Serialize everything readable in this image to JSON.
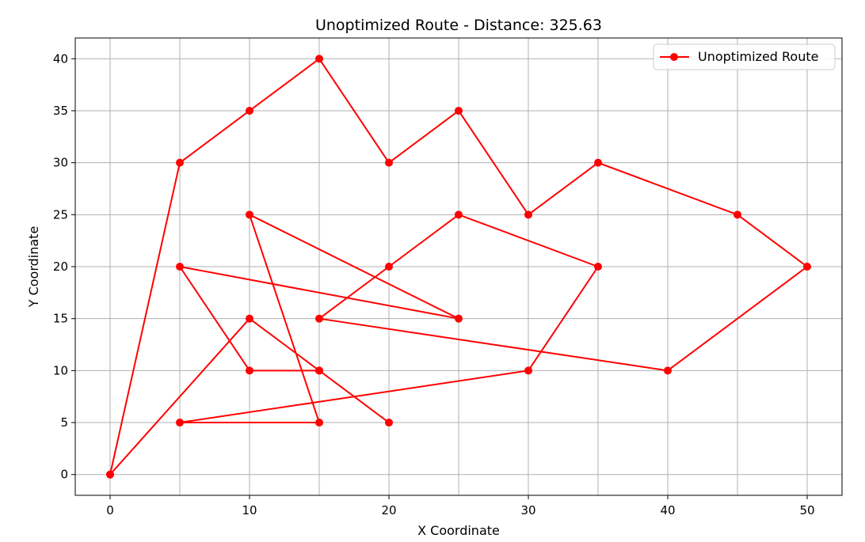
{
  "chart_data": {
    "type": "line",
    "title": "Unoptimized Route - Distance: 325.63",
    "xlabel": "X Coordinate",
    "ylabel": "Y Coordinate",
    "xlim": [
      -2.5,
      52.5
    ],
    "ylim": [
      -2,
      42
    ],
    "xticks": [
      0,
      10,
      20,
      30,
      40,
      50
    ],
    "yticks": [
      0,
      5,
      10,
      15,
      20,
      25,
      30,
      35,
      40
    ],
    "xtick_labels": [
      "0",
      "10",
      "20",
      "30",
      "40",
      "50"
    ],
    "ytick_labels": [
      "0",
      "5",
      "10",
      "15",
      "20",
      "25",
      "30",
      "35",
      "40"
    ],
    "grid_x": [
      0,
      5,
      10,
      15,
      20,
      25,
      30,
      35,
      40,
      45,
      50
    ],
    "grid_y": [
      0,
      5,
      10,
      15,
      20,
      25,
      30,
      35,
      40
    ],
    "grid": true,
    "legend_position": "upper-right",
    "series": [
      {
        "name": "Unoptimized Route",
        "color": "#ff0000",
        "marker": "circle",
        "points": [
          [
            0,
            0
          ],
          [
            5,
            30
          ],
          [
            10,
            35
          ],
          [
            15,
            40
          ],
          [
            20,
            30
          ],
          [
            25,
            35
          ],
          [
            30,
            25
          ],
          [
            35,
            30
          ],
          [
            45,
            25
          ],
          [
            50,
            20
          ],
          [
            40,
            10
          ],
          [
            15,
            15
          ],
          [
            20,
            20
          ],
          [
            25,
            25
          ],
          [
            35,
            20
          ],
          [
            30,
            10
          ],
          [
            5,
            5
          ],
          [
            15,
            5
          ],
          [
            10,
            25
          ],
          [
            25,
            15
          ],
          [
            5,
            20
          ],
          [
            10,
            10
          ],
          [
            15,
            10
          ],
          [
            20,
            5
          ],
          [
            15,
            10
          ],
          [
            10,
            15
          ],
          [
            0,
            0
          ]
        ]
      }
    ]
  }
}
